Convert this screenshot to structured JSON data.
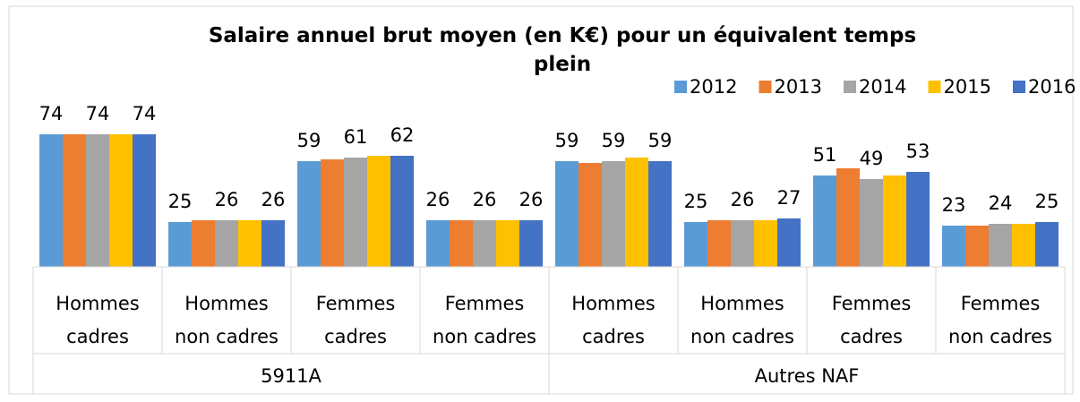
{
  "chart_data": {
    "type": "bar",
    "title": "Salaire annuel brut moyen (en K€) pour un équivalent temps plein",
    "categories": [
      "Hommes cadres",
      "Hommes non cadres",
      "Femmes cadres",
      "Femmes non cadres",
      "Hommes cadres",
      "Hommes non cadres",
      "Femmes cadres",
      "Femmes non cadres"
    ],
    "category_groups": [
      {
        "name": "5911A",
        "size": 4
      },
      {
        "name": "Autres NAF",
        "size": 4
      }
    ],
    "series": [
      {
        "name": "2012",
        "color": "#5b9bd5",
        "data_labels": true,
        "values": [
          74,
          25,
          59,
          26,
          59,
          25,
          51,
          23
        ]
      },
      {
        "name": "2013",
        "color": "#ed7d31",
        "data_labels": false,
        "values": [
          74,
          26,
          60,
          26,
          58,
          26,
          55,
          23
        ]
      },
      {
        "name": "2014",
        "color": "#a5a5a5",
        "data_labels": true,
        "values": [
          74,
          26,
          61,
          26,
          59,
          26,
          49,
          24
        ]
      },
      {
        "name": "2015",
        "color": "#ffc000",
        "data_labels": false,
        "values": [
          74,
          26,
          62,
          26,
          61,
          26,
          51,
          24
        ]
      },
      {
        "name": "2016",
        "color": "#4472c4",
        "data_labels": true,
        "values": [
          74,
          26,
          62,
          26,
          59,
          27,
          53,
          25
        ]
      }
    ],
    "legend": "top-right"
  }
}
